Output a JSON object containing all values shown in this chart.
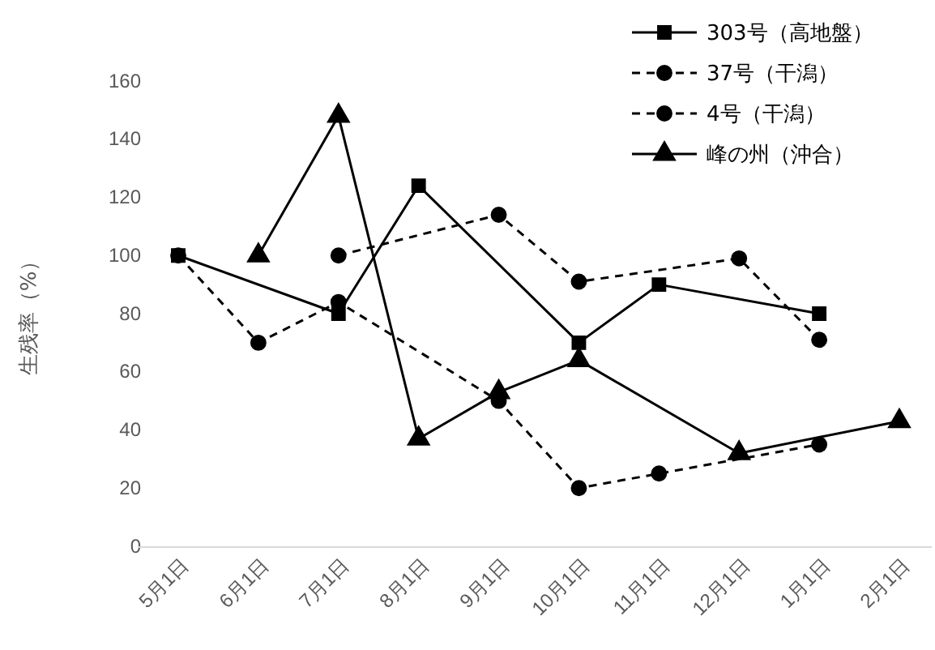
{
  "chart_data": {
    "type": "line",
    "ylabel": "生残率（%）",
    "categories": [
      "5月1日",
      "6月1日",
      "7月1日",
      "8月1日",
      "9月1日",
      "10月1日",
      "11月1日",
      "12月1日",
      "1月1日",
      "2月1日"
    ],
    "ylim": [
      0,
      160
    ],
    "yticks": [
      0,
      20,
      40,
      60,
      80,
      100,
      120,
      140,
      160
    ],
    "grid": false,
    "legend": "top right",
    "series": [
      {
        "name": "303号（高地盤）",
        "color": "#000000",
        "marker": "square",
        "line_style": "solid",
        "values": [
          100,
          null,
          80,
          124,
          null,
          70,
          90,
          null,
          80,
          null
        ]
      },
      {
        "name": "37号（干潟）",
        "color": "#000000",
        "marker": "circle",
        "line_style": "dashed",
        "values": [
          100,
          70,
          84,
          null,
          50,
          20,
          25,
          null,
          35,
          null
        ]
      },
      {
        "name": "4号（干潟）",
        "color": "#000000",
        "marker": "circle",
        "line_style": "dashed",
        "values": [
          null,
          null,
          100,
          null,
          114,
          91,
          null,
          99,
          71,
          null
        ]
      },
      {
        "name": "峰の州（沖合）",
        "color": "#000000",
        "marker": "triangle",
        "line_style": "solid",
        "values": [
          null,
          100,
          148,
          37,
          53,
          64,
          null,
          32,
          null,
          43
        ]
      }
    ]
  }
}
